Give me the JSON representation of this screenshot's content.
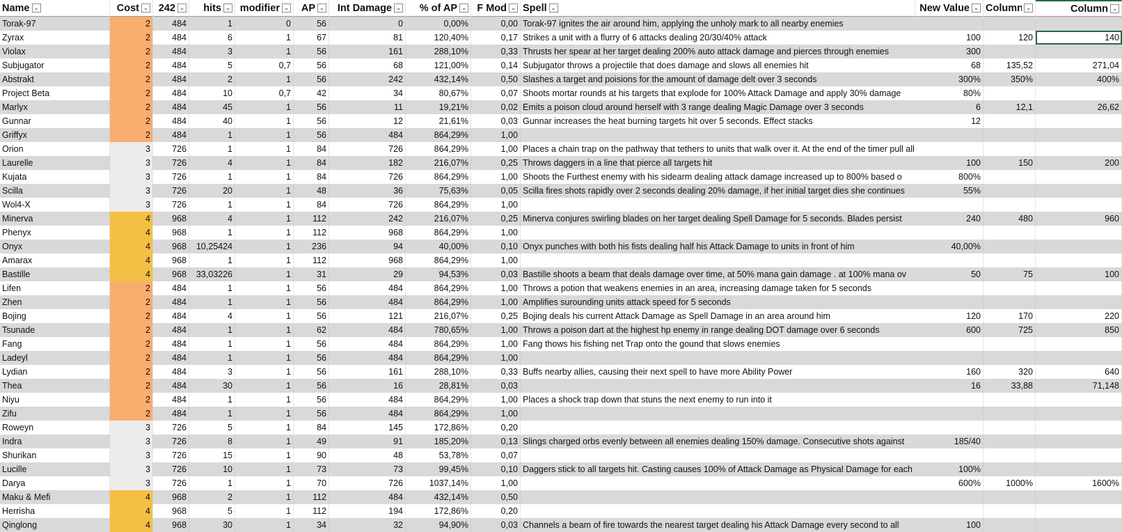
{
  "columns": [
    "Name",
    "Cost",
    "242",
    "hits",
    "modifier",
    "AP",
    "Int Damage",
    "% of AP",
    "F Mod",
    "Spell",
    "New Value",
    "Column",
    "Column"
  ],
  "rows": [
    [
      "Torak-97",
      "2",
      "484",
      "1",
      "0",
      "56",
      "0",
      "0,00%",
      "0,00",
      "Torak-97 ignites the air around him, applying the unholy mark to all nearby enemies",
      "",
      "",
      ""
    ],
    [
      "Zyrax",
      "2",
      "484",
      "6",
      "1",
      "67",
      "81",
      "120,40%",
      "0,17",
      "Strikes a unit with a flurry of 6 attacks dealing 20/30/40% attack",
      "100",
      "120",
      "140"
    ],
    [
      "Violax",
      "2",
      "484",
      "3",
      "1",
      "56",
      "161",
      "288,10%",
      "0,33",
      "Thrusts her spear at her target dealing 200% auto attack damage and pierces through enemies",
      "300",
      "",
      ""
    ],
    [
      "Subjugator",
      "2",
      "484",
      "5",
      "0,7",
      "56",
      "68",
      "121,00%",
      "0,14",
      "Subjugator throws a projectile that does damage and slows all enemies hit",
      "68",
      "135,52",
      "271,04"
    ],
    [
      "Abstrakt",
      "2",
      "484",
      "2",
      "1",
      "56",
      "242",
      "432,14%",
      "0,50",
      "Slashes a target and poisions for the amount of damage delt over 3 seconds",
      "300%",
      "350%",
      "400%"
    ],
    [
      "Project Beta",
      "2",
      "484",
      "10",
      "0,7",
      "42",
      "34",
      "80,67%",
      "0,07",
      "Shoots mortar rounds at his targets that explode for 100% Attack Damage and apply 30% damage",
      "80%",
      "",
      ""
    ],
    [
      "Marlyx",
      "2",
      "484",
      "45",
      "1",
      "56",
      "11",
      "19,21%",
      "0,02",
      "Emits a poison cloud around herself with 3 range dealing Magic Damage over 3 seconds",
      "6",
      "12,1",
      "26,62"
    ],
    [
      "Gunnar",
      "2",
      "484",
      "40",
      "1",
      "56",
      "12",
      "21,61%",
      "0,03",
      "Gunnar increases the heat burning targets hit over 5 seconds. Effect stacks",
      "12",
      "",
      ""
    ],
    [
      "Griffyx",
      "2",
      "484",
      "1",
      "1",
      "56",
      "484",
      "864,29%",
      "1,00",
      "",
      "",
      "",
      ""
    ],
    [
      "Orion",
      "3",
      "726",
      "1",
      "1",
      "84",
      "726",
      "864,29%",
      "1,00",
      "Places a chain trap on the pathway that tethers to units that walk over it. At the end of the timer pull all tethered units to the trap",
      "",
      "",
      ""
    ],
    [
      "Laurelle",
      "3",
      "726",
      "4",
      "1",
      "84",
      "182",
      "216,07%",
      "0,25",
      "Throws daggers in a line that pierce all targets hit",
      "100",
      "150",
      "200"
    ],
    [
      "Kujata",
      "3",
      "726",
      "1",
      "1",
      "84",
      "726",
      "864,29%",
      "1,00",
      "Shoots the Furthest enemy with his sidearm dealing attack damage increased up to 800% based o",
      "800%",
      "",
      ""
    ],
    [
      "Scilla",
      "3",
      "726",
      "20",
      "1",
      "48",
      "36",
      "75,63%",
      "0,05",
      "Scilla fires shots rapidly over 2 seconds dealing 20% damage, if her initial target dies she continues",
      "55%",
      "",
      ""
    ],
    [
      "Wol4-X",
      "3",
      "726",
      "1",
      "1",
      "84",
      "726",
      "864,29%",
      "1,00",
      "",
      "",
      "",
      ""
    ],
    [
      "Minerva",
      "4",
      "968",
      "4",
      "1",
      "112",
      "242",
      "216,07%",
      "0,25",
      "Minerva conjures swirling blades on her target dealing Spell Damage for 5 seconds. Blades persist",
      "240",
      "480",
      "960"
    ],
    [
      "Phenyx",
      "4",
      "968",
      "1",
      "1",
      "112",
      "968",
      "864,29%",
      "1,00",
      "",
      "",
      "",
      ""
    ],
    [
      "Onyx",
      "4",
      "968",
      "10,25424",
      "1",
      "236",
      "94",
      "40,00%",
      "0,10",
      "Onyx punches with both his fists dealing half his Attack Damage to units in front of him",
      "40,00%",
      "",
      ""
    ],
    [
      "Amarax",
      "4",
      "968",
      "1",
      "1",
      "112",
      "968",
      "864,29%",
      "1,00",
      "",
      "",
      "",
      ""
    ],
    [
      "Bastille",
      "4",
      "968",
      "33,03226",
      "1",
      "31",
      "29",
      "94,53%",
      "0,03",
      "Bastille shoots a beam that deals damage over time, at 50% mana gain damage . at 100% mana ov",
      "50",
      "75",
      "100"
    ],
    [
      "Lifen",
      "2",
      "484",
      "1",
      "1",
      "56",
      "484",
      "864,29%",
      "1,00",
      "Throws a potion that weakens enemies in an area, increasing damage taken for 5 seconds",
      "",
      "",
      ""
    ],
    [
      "Zhen",
      "2",
      "484",
      "1",
      "1",
      "56",
      "484",
      "864,29%",
      "1,00",
      "Amplifies surounding units attack speed for 5 seconds",
      "",
      "",
      ""
    ],
    [
      "Bojing",
      "2",
      "484",
      "4",
      "1",
      "56",
      "121",
      "216,07%",
      "0,25",
      "Bojing deals his current Attack Damage as Spell Damage in an area around him",
      "120",
      "170",
      "220"
    ],
    [
      "Tsunade",
      "2",
      "484",
      "1",
      "1",
      "62",
      "484",
      "780,65%",
      "1,00",
      "Throws a poison dart at the highest hp enemy in range dealing DOT damage over 6 seconds",
      "600",
      "725",
      "850"
    ],
    [
      "Fang",
      "2",
      "484",
      "1",
      "1",
      "56",
      "484",
      "864,29%",
      "1,00",
      "Fang thows his fishing net Trap onto the gound that slows enemies",
      "",
      "",
      ""
    ],
    [
      "Ladeyl",
      "2",
      "484",
      "1",
      "1",
      "56",
      "484",
      "864,29%",
      "1,00",
      "",
      "",
      "",
      ""
    ],
    [
      "Lydian",
      "2",
      "484",
      "3",
      "1",
      "56",
      "161",
      "288,10%",
      "0,33",
      "Buffs nearby allies, causing their next spell to have more Ability Power",
      "160",
      "320",
      "640"
    ],
    [
      "Thea",
      "2",
      "484",
      "30",
      "1",
      "56",
      "16",
      "28,81%",
      "0,03",
      "",
      "16",
      "33,88",
      "71,148"
    ],
    [
      "Niyu",
      "2",
      "484",
      "1",
      "1",
      "56",
      "484",
      "864,29%",
      "1,00",
      "Places a shock trap down that stuns the next enemy to run into it",
      "",
      "",
      ""
    ],
    [
      "Zifu",
      "2",
      "484",
      "1",
      "1",
      "56",
      "484",
      "864,29%",
      "1,00",
      "",
      "",
      "",
      ""
    ],
    [
      "Roweyn",
      "3",
      "726",
      "5",
      "1",
      "84",
      "145",
      "172,86%",
      "0,20",
      "",
      "",
      "",
      ""
    ],
    [
      "Indra",
      "3",
      "726",
      "8",
      "1",
      "49",
      "91",
      "185,20%",
      "0,13",
      "Slings charged orbs evenly between all enemies dealing 150% damage. Consecutive shots against",
      "185/40",
      "",
      ""
    ],
    [
      "Shurikan",
      "3",
      "726",
      "15",
      "1",
      "90",
      "48",
      "53,78%",
      "0,07",
      "",
      "",
      "",
      ""
    ],
    [
      "Lucille",
      "3",
      "726",
      "10",
      "1",
      "73",
      "73",
      "99,45%",
      "0,10",
      "Daggers stick to all targets hit. Casting causes 100% of Attack Damage as Physical Damage for each",
      "100%",
      "",
      ""
    ],
    [
      "Darya",
      "3",
      "726",
      "1",
      "1",
      "70",
      "726",
      "1037,14%",
      "1,00",
      "",
      "600%",
      "1000%",
      "1600%"
    ],
    [
      "Maku & Mefi",
      "4",
      "968",
      "2",
      "1",
      "112",
      "484",
      "432,14%",
      "0,50",
      "",
      "",
      "",
      ""
    ],
    [
      "Herrisha",
      "4",
      "968",
      "5",
      "1",
      "112",
      "194",
      "172,86%",
      "0,20",
      "",
      "",
      "",
      ""
    ],
    [
      "Qinglong",
      "4",
      "968",
      "30",
      "1",
      "34",
      "32",
      "94,90%",
      "0,03",
      "Channels a beam of fire towards the nearest target dealing his Attack Damage every second to all",
      "100",
      "",
      ""
    ]
  ],
  "colors": {
    "cost_2": "#f9ad6f",
    "cost_3": "#ececec",
    "cost_4": "#f4bf45",
    "band": "#d9d9d9",
    "selection": "#1e6e3e"
  },
  "icons": {
    "filter": "filter-dropdown-icon"
  }
}
